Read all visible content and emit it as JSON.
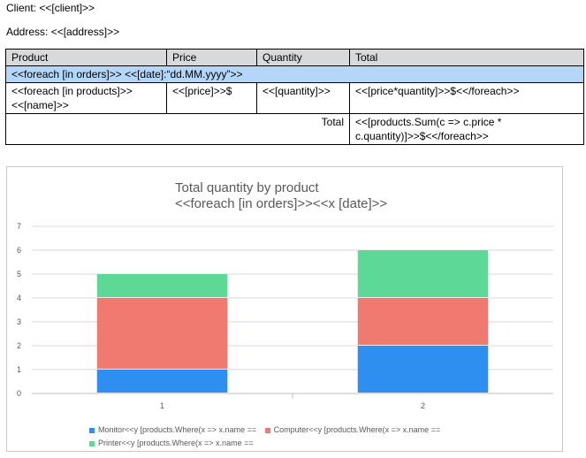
{
  "header": {
    "client_line": "Client: <<[client]>>",
    "address_line": "Address: <<[address]>>"
  },
  "table": {
    "columns": [
      "Product",
      "Price",
      "Quantity",
      "Total"
    ],
    "group_row": "<<foreach [in orders]>> <<[date]:“dd.MM.yyyy”>>",
    "item_row": {
      "product": "<<foreach [in products]>> <<[name]>>",
      "price": "<<[price]>>$",
      "quantity": "<<[quantity]>>",
      "total": "<<[price*quantity]>>$<</foreach>>"
    },
    "total_row": {
      "label": "Total",
      "value": "<<[products.Sum(c => c.price * c.quantity)]>>$<</foreach>>"
    }
  },
  "chart_data": {
    "type": "bar",
    "stacked": true,
    "title": "Total quantity by product",
    "subtitle": "<<foreach [in orders]>><<x [date]>>",
    "categories": [
      "1",
      "2"
    ],
    "ylim": [
      0,
      7
    ],
    "yticks": [
      "0",
      "1",
      "2",
      "3",
      "4",
      "5",
      "6",
      "7"
    ],
    "grid": true,
    "legend_position": "bottom",
    "series": [
      {
        "name": "Monitor<<y [products.Where(x => x.name ==",
        "values": [
          1,
          2
        ],
        "color": "#2e8ff0"
      },
      {
        "name": "Computer<<y [products.Where(x => x.name ==",
        "values": [
          3,
          2
        ],
        "color": "#f07a70"
      },
      {
        "name": "Printer<<y [products.Where(x => x.name ==",
        "values": [
          1,
          2
        ],
        "color": "#5dd896"
      }
    ]
  }
}
